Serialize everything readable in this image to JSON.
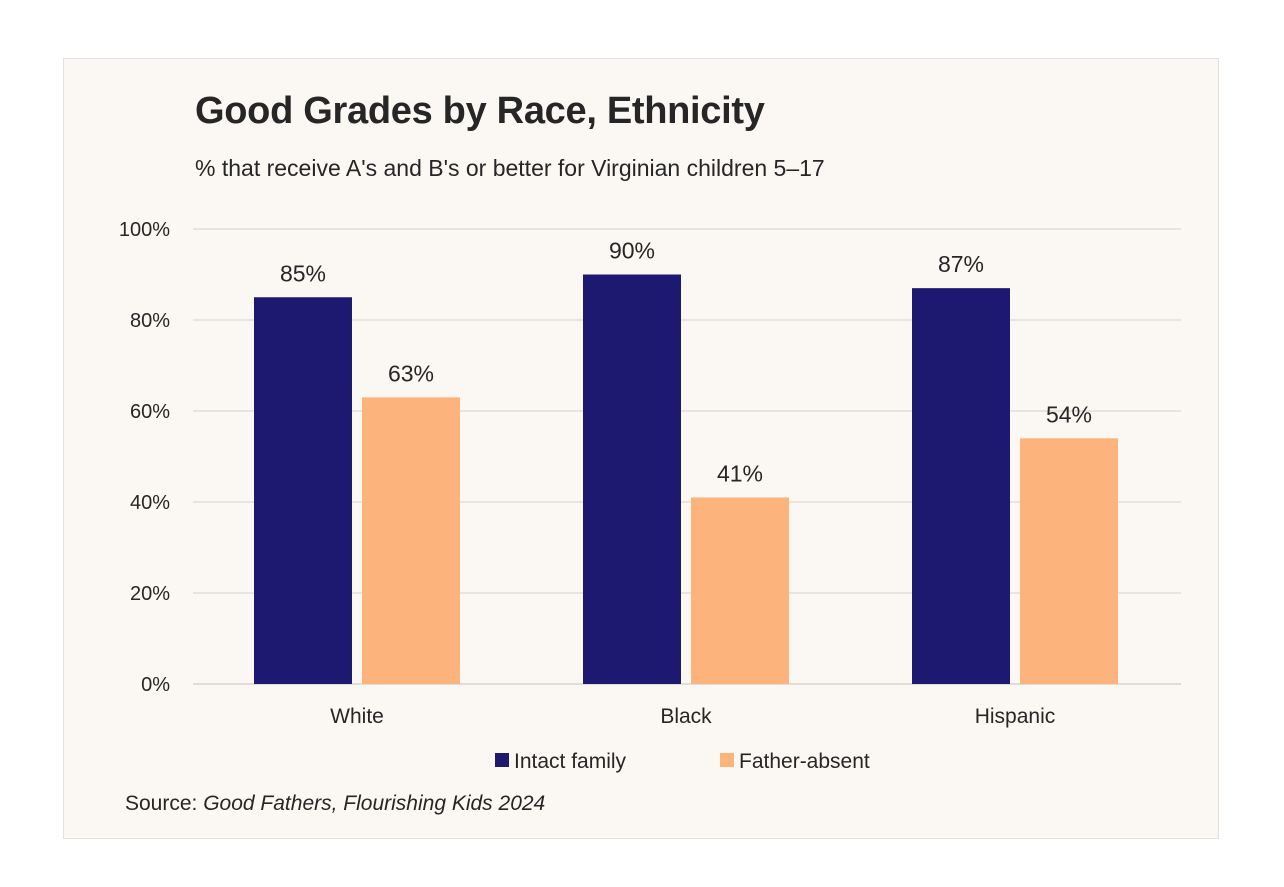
{
  "colors": {
    "intact": "#1e1970",
    "absent": "#fdb47c",
    "grid": "#dcd8d4",
    "text": "#262626"
  },
  "source": {
    "prefix": "Source: ",
    "title": "Good Fathers, Flourishing Kids 2024"
  },
  "chart_data": {
    "type": "bar",
    "title": "Good Grades by Race, Ethnicity",
    "subtitle": "% that receive A's and B's or better for Virginian children 5–17",
    "xlabel": "",
    "ylabel": "",
    "ylim": [
      0,
      100
    ],
    "yticks": [
      0,
      20,
      40,
      60,
      80,
      100
    ],
    "ytick_labels": [
      "0%",
      "20%",
      "40%",
      "60%",
      "80%",
      "100%"
    ],
    "grid": true,
    "legend_position": "bottom",
    "categories": [
      "White",
      "Black",
      "Hispanic"
    ],
    "series": [
      {
        "name": "Intact family",
        "values": [
          85,
          90,
          87
        ],
        "labels": [
          "85%",
          "90%",
          "87%"
        ],
        "color": "#1e1970"
      },
      {
        "name": "Father-absent",
        "values": [
          63,
          41,
          54
        ],
        "labels": [
          "63%",
          "41%",
          "54%"
        ],
        "color": "#fdb47c"
      }
    ]
  }
}
